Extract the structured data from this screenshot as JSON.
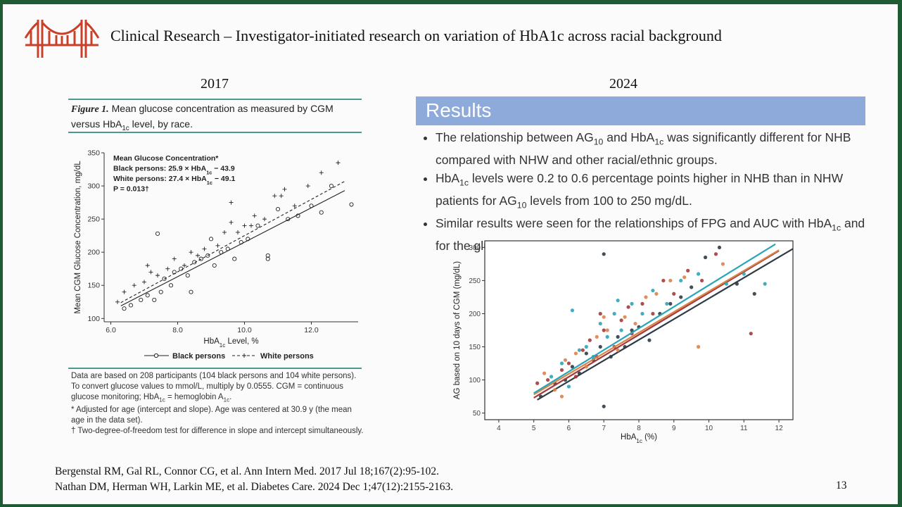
{
  "slide": {
    "title": "Clinical Research – Investigator-initiated research on variation of HbA1c across racial background",
    "left_year": "2017",
    "right_year": "2024",
    "figure_label": "Figure 1.",
    "figure_caption": [
      "Mean glucose concentration as measured by CGM versus HbA",
      "1c",
      " level, by race."
    ],
    "footnote": [
      "Data are based on 208 participants (104 black persons and 104 white persons). To convert glucose values to mmol/L, multiply by 0.0555. CGM = continuous glucose monitoring; HbA",
      "1c",
      " = hemoglobin A",
      "1c",
      "."
    ],
    "footnote_star": "* Adjusted for age (intercept and slope). Age was centered at 30.9 y (the mean age in the data set).",
    "footnote_dagger": "† Two-degree-of-freedom test for difference in slope and intercept simultaneously.",
    "results_heading": "Results",
    "bullets": [
      [
        "The relationship between AG",
        "10",
        " and HbA",
        "1c",
        " was significantly different for NHB compared with NHW and  other racial/ethnic groups."
      ],
      [
        "HbA",
        "1c",
        " levels were 0.2 to 0.6 percentage points higher in NHB than in NHW patients for AG",
        "10",
        " levels from 100 to 250 mg/dL."
      ],
      [
        "Similar results were seen for the relationships of FPG and AUC with HbA",
        "1c",
        " and for the glucose measurements with glycated albumin."
      ]
    ],
    "references": [
      "Bergenstal RM, Gal RL, Connor CG, et al. Ann Intern Med. 2017 Jul 18;167(2):95-102.",
      "Nathan DM, Herman WH, Larkin ME, et al. Diabetes Care. 2024 Dec 1;47(12):2155-2163."
    ],
    "page_number": "13"
  },
  "chart_data": [
    {
      "type": "scatter",
      "frame": false,
      "annotations": [
        [
          "Mean Glucose Concentration*"
        ],
        [
          "Black persons: 25.9 × HbA",
          "1c",
          " − 43.9"
        ],
        [
          "White persons: 27.4 × HbA",
          "1c",
          " − 49.1"
        ],
        [
          "P = 0.013†"
        ]
      ],
      "xlabel": [
        "HbA",
        "1c",
        " Level, %"
      ],
      "ylabel": [
        "Mean CGM Glucose Concentration, mg/dL"
      ],
      "xlim": [
        5.8,
        13.4
      ],
      "ylim": [
        95,
        350
      ],
      "xticks": [
        {
          "value": 6,
          "label": "6.0"
        },
        {
          "value": 8,
          "label": "8.0"
        },
        {
          "value": 10,
          "label": "10.0"
        },
        {
          "value": 12,
          "label": "12.0"
        }
      ],
      "yticks": [
        100,
        150,
        200,
        250,
        300,
        350
      ],
      "series": [
        {
          "name": "Black persons",
          "color": "#222222",
          "marker": "circle",
          "linestyle": "solid",
          "x": [
            6.4,
            6.6,
            6.9,
            7.1,
            7.3,
            7.5,
            7.6,
            7.8,
            7.9,
            8.1,
            8.3,
            8.5,
            8.7,
            8.9,
            9.1,
            9.3,
            9.5,
            9.7,
            9.9,
            10.1,
            10.4,
            10.7,
            11.0,
            11.3,
            11.6,
            12.0,
            12.3,
            12.6,
            13.2,
            7.4,
            8.4,
            9.0,
            10.7
          ],
          "y": [
            115,
            120,
            128,
            135,
            128,
            140,
            160,
            150,
            170,
            175,
            165,
            185,
            190,
            195,
            180,
            200,
            205,
            190,
            215,
            220,
            240,
            195,
            265,
            250,
            255,
            270,
            260,
            300,
            272,
            228,
            140,
            220,
            190
          ],
          "fit": {
            "x": [
              6.3,
              13.0
            ],
            "y": [
              119,
              293
            ]
          }
        },
        {
          "name": "White persons",
          "color": "#222222",
          "marker": "plus",
          "linestyle": "dashed",
          "x": [
            6.2,
            6.4,
            6.7,
            7.0,
            7.2,
            7.4,
            7.7,
            7.9,
            8.2,
            8.4,
            8.6,
            8.8,
            9.2,
            9.4,
            9.6,
            9.8,
            10.0,
            10.3,
            10.6,
            10.9,
            11.2,
            11.5,
            11.9,
            12.3,
            12.8,
            7.1,
            9.6,
            10.2,
            11.1
          ],
          "y": [
            125,
            140,
            150,
            155,
            170,
            165,
            175,
            190,
            180,
            200,
            195,
            205,
            210,
            230,
            245,
            230,
            240,
            255,
            250,
            285,
            295,
            270,
            300,
            320,
            335,
            180,
            275,
            240,
            285
          ],
          "fit": {
            "x": [
              6.3,
              13.0
            ],
            "y": [
              124,
              307
            ]
          }
        }
      ]
    },
    {
      "type": "scatter",
      "frame": true,
      "xlabel": [
        "HbA",
        "1c",
        " (%)"
      ],
      "ylabel": [
        "AG based on 10 days of CGM (mg/dL)"
      ],
      "xlim": [
        3.6,
        12.4
      ],
      "ylim": [
        40,
        310
      ],
      "xticks": [
        4,
        5,
        6,
        7,
        8,
        9,
        10,
        11,
        12
      ],
      "yticks": [
        50,
        100,
        150,
        200,
        250,
        300
      ],
      "series": [
        {
          "color": "#2f3b45",
          "marker": "dot",
          "x": [
            5.2,
            5.6,
            5.9,
            6.1,
            6.3,
            6.5,
            6.7,
            6.9,
            7.0,
            7.2,
            7.4,
            7.6,
            7.8,
            8.0,
            8.3,
            8.6,
            8.9,
            9.2,
            9.5,
            9.9,
            10.3,
            10.8,
            11.3,
            7.0
          ],
          "y": [
            75,
            95,
            100,
            120,
            110,
            140,
            130,
            150,
            60,
            135,
            165,
            150,
            175,
            180,
            160,
            200,
            215,
            225,
            240,
            285,
            300,
            245,
            230,
            290
          ],
          "fit": {
            "x": [
              5.1,
              12.4
            ],
            "y": [
              70,
              298
            ]
          }
        },
        {
          "color": "#a5393b",
          "marker": "dot",
          "x": [
            5.1,
            5.4,
            5.8,
            6.0,
            6.2,
            6.4,
            6.6,
            6.8,
            7.0,
            7.3,
            7.5,
            7.8,
            8.1,
            8.4,
            8.7,
            9.0,
            9.4,
            9.8,
            10.2,
            11.2,
            6.9,
            7.7
          ],
          "y": [
            95,
            100,
            115,
            125,
            105,
            145,
            160,
            135,
            175,
            150,
            190,
            170,
            215,
            200,
            250,
            230,
            265,
            250,
            290,
            170,
            200,
            210
          ],
          "fit": {
            "x": [
              5.0,
              12.0
            ],
            "y": [
              73,
              295
            ]
          }
        },
        {
          "color": "#d9844a",
          "marker": "dot",
          "x": [
            5.3,
            5.6,
            5.9,
            6.2,
            6.5,
            6.8,
            7.1,
            7.4,
            7.6,
            7.9,
            8.2,
            8.5,
            8.9,
            9.3,
            9.7,
            10.4,
            5.8,
            7.0
          ],
          "y": [
            110,
            85,
            130,
            140,
            120,
            165,
            175,
            145,
            195,
            185,
            225,
            230,
            250,
            255,
            150,
            275,
            75,
            195
          ],
          "fit": {
            "x": [
              5.0,
              12.0
            ],
            "y": [
              78,
              296
            ]
          }
        },
        {
          "color": "#2aa5b8",
          "marker": "dot",
          "x": [
            5.5,
            5.8,
            6.0,
            6.3,
            6.5,
            6.7,
            6.9,
            7.1,
            7.3,
            7.5,
            7.8,
            8.1,
            8.4,
            8.8,
            9.2,
            9.7,
            10.5,
            11.0,
            11.6,
            6.1,
            7.4
          ],
          "y": [
            105,
            125,
            90,
            145,
            150,
            135,
            185,
            165,
            200,
            175,
            215,
            200,
            235,
            215,
            250,
            260,
            245,
            260,
            245,
            205,
            220
          ],
          "fit": {
            "x": [
              5.0,
              11.9
            ],
            "y": [
              80,
              305
            ]
          }
        }
      ]
    }
  ]
}
